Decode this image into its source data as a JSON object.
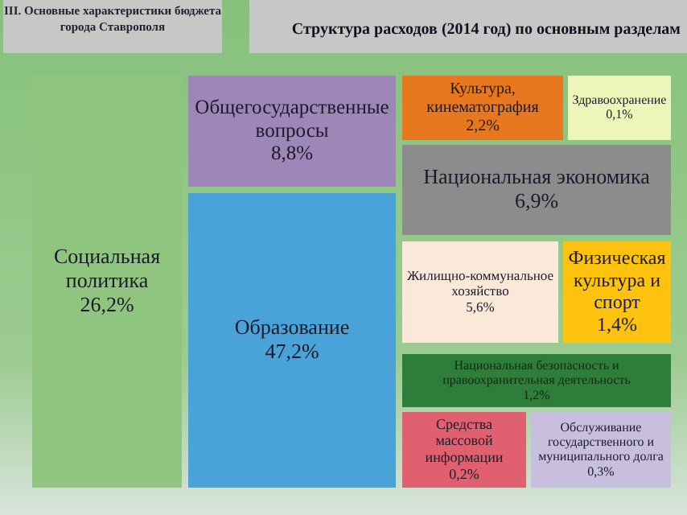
{
  "chart_data": {
    "type": "other",
    "title": "Структура расходов  (2014 год) по основным разделам",
    "subtitle": "III.   Основные характеристики бюджета города Ставрополя",
    "categories": [
      "Социальная политика",
      "Общегосударственные вопросы",
      "Образование",
      "Культура, кинематография",
      "Здравоохранение",
      "Национальная экономика",
      "Жилищно-коммунальное хозяйство",
      "Физическая культура и спорт",
      "Национальная безопасность и правоохранительная деятельность",
      "Средства массовой информации",
      "Обслуживание государственного и муниципального долга"
    ],
    "values": [
      26.2,
      8.8,
      47.2,
      2.2,
      0.1,
      6.9,
      5.6,
      1.4,
      1.2,
      0.2,
      0.3
    ],
    "value_labels": [
      "26,2%",
      "8,8%",
      "47,2%",
      "2,2%",
      "0,1%",
      "6,9%",
      "5,6%",
      "1,4%",
      "1,2%",
      "0,2%",
      "0,3%"
    ],
    "colors": [
      "#90c580",
      "#9f86b8",
      "#4aa3d8",
      "#e8781e",
      "#eef5b8",
      "#8c8c8c",
      "#fae8d8",
      "#ffc20e",
      "#2e7d3a",
      "#e06070",
      "#c8bedd"
    ]
  }
}
